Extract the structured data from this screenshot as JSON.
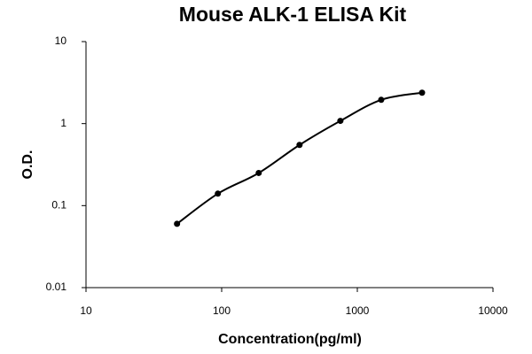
{
  "chart_data": {
    "type": "scatter",
    "title": "Mouse ALK-1 ELISA Kit",
    "x_label": "Concentration(pg/ml)",
    "y_label": "O.D.",
    "x": [
      46.875,
      93.75,
      187.5,
      375,
      750,
      1500,
      3000
    ],
    "values": [
      0.06,
      0.14,
      0.25,
      0.55,
      1.08,
      1.95,
      2.38
    ],
    "color": "#000000",
    "log_x": true,
    "log_y": true,
    "smooth_line": true,
    "xlim": [
      10,
      10000
    ],
    "xticks": [
      10,
      100,
      1000,
      10000
    ],
    "ylim": [
      0.01,
      10
    ],
    "yticks": [
      0.01,
      0.1,
      1,
      10
    ],
    "grid": false
  }
}
